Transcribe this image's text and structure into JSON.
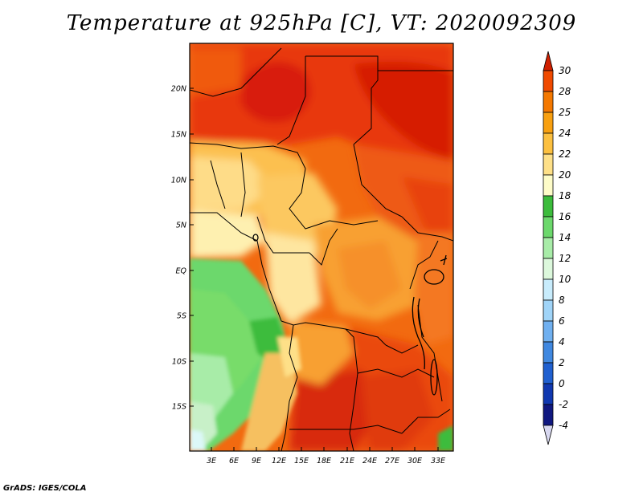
{
  "title": "Temperature at 925hPa [C], VT: 2020092309",
  "credit": "GrADS: IGES/COLA",
  "map": {
    "lat_labels": [
      "20N",
      "15N",
      "10N",
      "5N",
      "EQ",
      "5S",
      "10S",
      "15S"
    ],
    "lon_labels": [
      "3E",
      "6E",
      "9E",
      "12E",
      "15E",
      "18E",
      "21E",
      "24E",
      "27E",
      "30E",
      "33E"
    ]
  },
  "colorbar": {
    "levels": [
      "30",
      "28",
      "25",
      "24",
      "22",
      "20",
      "18",
      "16",
      "14",
      "12",
      "10",
      "8",
      "6",
      "4",
      "2",
      "0",
      "-2",
      "-4"
    ],
    "colors": [
      "#e02000",
      "#f04a00",
      "#f47800",
      "#f8a010",
      "#fcc040",
      "#fee088",
      "#fefcc8",
      "#3cbc3c",
      "#6cd86c",
      "#a8eca8",
      "#dcf8dc",
      "#c8ecfc",
      "#a0d4f8",
      "#70b0f0",
      "#4088e0",
      "#2060d0",
      "#1038b0",
      "#101880",
      "#d8d8f0"
    ],
    "top_color": "#d02000",
    "bottom_color": "#d8d8f0"
  }
}
